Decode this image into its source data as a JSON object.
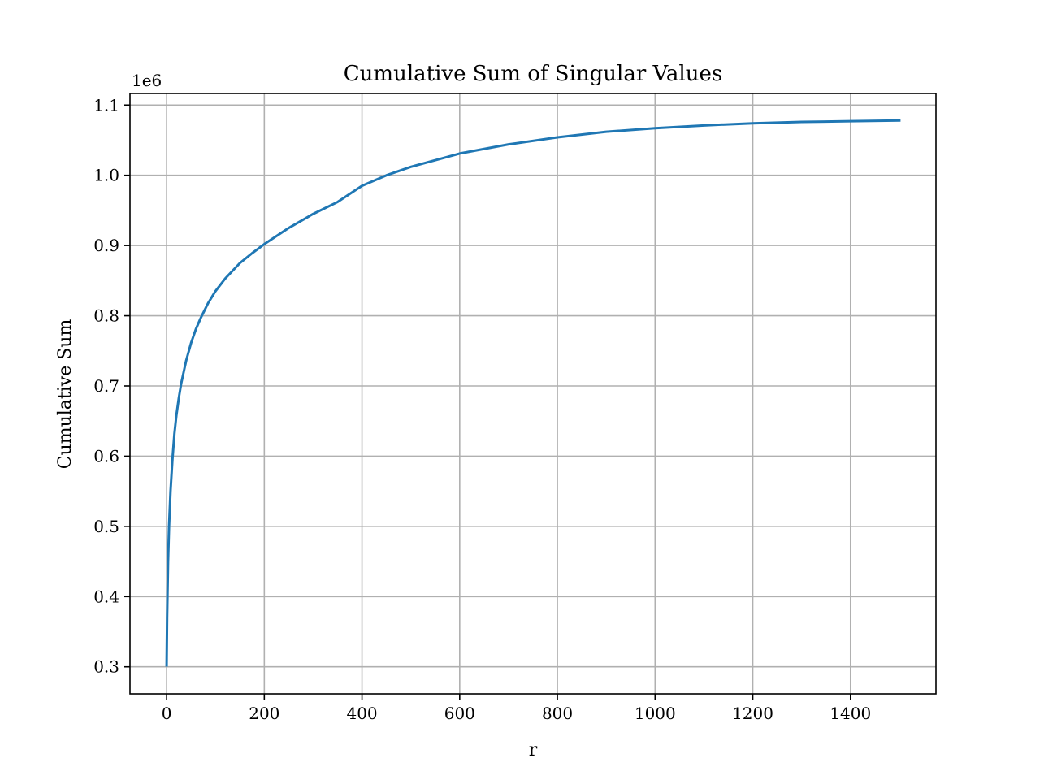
{
  "chart_data": {
    "type": "line",
    "title": "Cumulative Sum of Singular Values",
    "xlabel": "r",
    "ylabel": "Cumulative Sum",
    "y_offset_label": "1e6",
    "xlim": [
      -75,
      1575
    ],
    "ylim": [
      0.2615,
      1.1165
    ],
    "x_ticks": [
      0,
      200,
      400,
      600,
      800,
      1000,
      1200,
      1400
    ],
    "x_tick_labels": [
      "0",
      "200",
      "400",
      "600",
      "800",
      "1000",
      "1200",
      "1400"
    ],
    "y_ticks": [
      0.3,
      0.4,
      0.5,
      0.6,
      0.7,
      0.8,
      0.9,
      1.0,
      1.1
    ],
    "y_tick_labels": [
      "0.3",
      "0.4",
      "0.5",
      "0.6",
      "0.7",
      "0.8",
      "0.9",
      "1.0",
      "1.1"
    ],
    "grid": true,
    "line_color": "#1f77b4",
    "series": [
      {
        "x": [
          0,
          1,
          2,
          3,
          5,
          8,
          12,
          16,
          20,
          25,
          30,
          40,
          50,
          60,
          70,
          85,
          100,
          120,
          150,
          175,
          200,
          250,
          300,
          350,
          400,
          450,
          500,
          600,
          700,
          800,
          900,
          1000,
          1100,
          1200,
          1300,
          1400,
          1500
        ],
        "values": [
          0.302,
          0.37,
          0.41,
          0.45,
          0.5,
          0.55,
          0.596,
          0.632,
          0.658,
          0.683,
          0.704,
          0.736,
          0.761,
          0.781,
          0.797,
          0.818,
          0.835,
          0.853,
          0.875,
          0.889,
          0.902,
          0.925,
          0.945,
          0.962,
          0.985,
          1.0,
          1.012,
          1.031,
          1.044,
          1.054,
          1.062,
          1.067,
          1.071,
          1.074,
          1.076,
          1.077,
          1.078
        ]
      }
    ]
  }
}
